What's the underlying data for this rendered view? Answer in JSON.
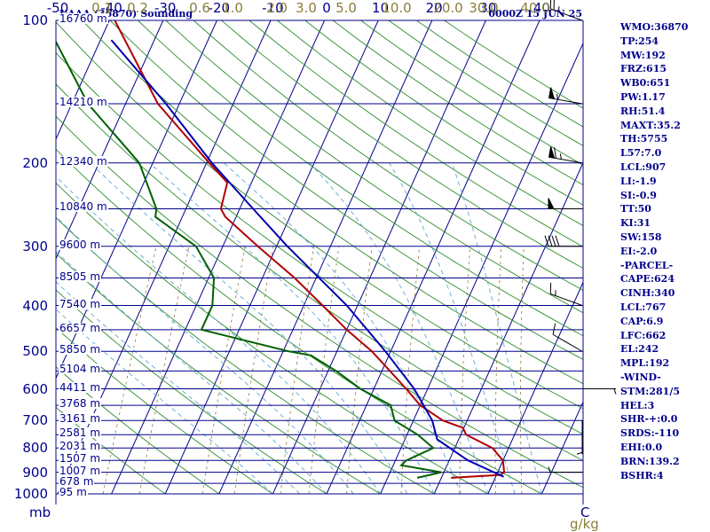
{
  "header": {
    "title_left": "UAAA (36870) Sounding",
    "title_right": "0000Z 15 JUN 25"
  },
  "indices": [
    "WMO:36870",
    "TP:254",
    "MW:192",
    "FRZ:615",
    "WB0:651",
    "PW:1.17",
    "RH:51.4",
    "MAXT:35.2",
    "TH:5755",
    "L57:7.0",
    "LCL:907",
    "LI:-1.9",
    "SI:-0.9",
    "TT:50",
    "KI:31",
    "SW:158",
    "EI:-2.0",
    "-PARCEL-",
    "CAPE:624",
    "CINH:340",
    "LCL:767",
    "CAP:6.9",
    "LFC:662",
    "EL:242",
    "MPL:192",
    "-WIND-",
    "STM:281/5",
    "HEL:3",
    "SHR-+:0.0",
    "SRDS:-110",
    "EHI:0.0",
    "BRN:139.2",
    "BSHR:4"
  ],
  "chart_data": {
    "type": "line",
    "subtype": "skew-T log-P sounding diagram",
    "pressure_axis": {
      "unit": "mb",
      "scale": "log",
      "range": [
        1000,
        100
      ],
      "tick_labels": [
        100,
        200,
        300,
        400,
        500,
        600,
        700,
        800,
        900,
        1000
      ]
    },
    "temperature_axis": {
      "unit": "C",
      "range": [
        -50,
        50
      ],
      "tick_labels": [
        -50,
        -40,
        -30,
        -20,
        -10,
        0,
        10,
        20,
        30,
        40
      ]
    },
    "mixing_ratio_axis": {
      "unit": "g/kg",
      "tick_labels": [
        "0.1",
        "0.2",
        "0.6",
        "1.0",
        "2.0",
        "3.0",
        "5.0",
        "10.0",
        "20.0",
        "30.0",
        "40.0"
      ],
      "values": [
        0.1,
        0.2,
        0.6,
        1.0,
        2.0,
        3.0,
        5.0,
        10.0,
        20.0,
        30.0,
        40.0
      ]
    },
    "height_levels": [
      {
        "pressure": 100,
        "label": "16760 m"
      },
      {
        "pressure": 150,
        "label": "14210 m"
      },
      {
        "pressure": 200,
        "label": "12340 m"
      },
      {
        "pressure": 250,
        "label": "10840 m"
      },
      {
        "pressure": 300,
        "label": "9600 m"
      },
      {
        "pressure": 350,
        "label": "8505 m"
      },
      {
        "pressure": 400,
        "label": "7540 m"
      },
      {
        "pressure": 450,
        "label": "6657 m"
      },
      {
        "pressure": 500,
        "label": "5850 m"
      },
      {
        "pressure": 550,
        "label": "5104 m"
      },
      {
        "pressure": 600,
        "label": "4411 m"
      },
      {
        "pressure": 650,
        "label": "3768 m"
      },
      {
        "pressure": 700,
        "label": "3161 m"
      },
      {
        "pressure": 750,
        "label": "2581 m"
      },
      {
        "pressure": 800,
        "label": "2031 m"
      },
      {
        "pressure": 850,
        "label": "1507 m"
      },
      {
        "pressure": 900,
        "label": "1007 m"
      },
      {
        "pressure": 950,
        "label": "678 m"
      },
      {
        "pressure": 1000,
        "label": "95 m"
      }
    ],
    "series": [
      {
        "kind": "temperature",
        "color": "#b00000",
        "points": [
          {
            "p": 925,
            "t": 21.8
          },
          {
            "p": 912,
            "t": 30.7
          },
          {
            "p": 900,
            "t": 31.2
          },
          {
            "p": 850,
            "t": 30.0
          },
          {
            "p": 800,
            "t": 27.0
          },
          {
            "p": 750,
            "t": 21.0
          },
          {
            "p": 725,
            "t": 19.8
          },
          {
            "p": 700,
            "t": 15.5
          },
          {
            "p": 650,
            "t": 10.0
          },
          {
            "p": 600,
            "t": 6.0
          },
          {
            "p": 550,
            "t": 1.5
          },
          {
            "p": 500,
            "t": -3.5
          },
          {
            "p": 450,
            "t": -10.0
          },
          {
            "p": 400,
            "t": -16.5
          },
          {
            "p": 350,
            "t": -24.0
          },
          {
            "p": 300,
            "t": -33.5
          },
          {
            "p": 260,
            "t": -42.0
          },
          {
            "p": 250,
            "t": -43.5
          },
          {
            "p": 220,
            "t": -44.5
          },
          {
            "p": 200,
            "t": -49.5
          },
          {
            "p": 150,
            "t": -64.0
          },
          {
            "p": 100,
            "t": -79.0
          }
        ]
      },
      {
        "kind": "dewpoint",
        "color": "#006000",
        "points": [
          {
            "p": 925,
            "t": 15.5
          },
          {
            "p": 900,
            "t": 19.5
          },
          {
            "p": 870,
            "t": 11.5
          },
          {
            "p": 850,
            "t": 12.0
          },
          {
            "p": 800,
            "t": 16.0
          },
          {
            "p": 750,
            "t": 12.0
          },
          {
            "p": 700,
            "t": 6.5
          },
          {
            "p": 650,
            "t": 4.5
          },
          {
            "p": 600,
            "t": -2.5
          },
          {
            "p": 550,
            "t": -8.5
          },
          {
            "p": 510,
            "t": -14.5
          },
          {
            "p": 500,
            "t": -19.0
          },
          {
            "p": 450,
            "t": -37.0
          },
          {
            "p": 400,
            "t": -37.0
          },
          {
            "p": 350,
            "t": -39.0
          },
          {
            "p": 300,
            "t": -45.0
          },
          {
            "p": 260,
            "t": -55.0
          },
          {
            "p": 250,
            "t": -55.5
          },
          {
            "p": 200,
            "t": -62.5
          },
          {
            "p": 150,
            "t": -77.0
          },
          {
            "p": 100,
            "t": -92.0
          }
        ]
      },
      {
        "kind": "parcel",
        "color": "#0000b0",
        "points": [
          {
            "p": 920,
            "t": 31.5
          },
          {
            "p": 850,
            "t": 23.5
          },
          {
            "p": 767,
            "t": 16.0
          },
          {
            "p": 700,
            "t": 13.5
          },
          {
            "p": 600,
            "t": 7.5
          },
          {
            "p": 500,
            "t": -1.0
          },
          {
            "p": 400,
            "t": -12.0
          },
          {
            "p": 300,
            "t": -28.0
          },
          {
            "p": 250,
            "t": -37.5
          },
          {
            "p": 200,
            "t": -49.0
          },
          {
            "p": 150,
            "t": -62.5
          },
          {
            "p": 110,
            "t": -78.0
          }
        ]
      }
    ],
    "wind_barbs": [
      {
        "p": 100,
        "dir": 290,
        "speed_kt": 25
      },
      {
        "p": 150,
        "dir": 280,
        "speed_kt": 55
      },
      {
        "p": 200,
        "dir": 280,
        "speed_kt": 65
      },
      {
        "p": 250,
        "dir": 270,
        "speed_kt": 50
      },
      {
        "p": 300,
        "dir": 270,
        "speed_kt": 40
      },
      {
        "p": 400,
        "dir": 290,
        "speed_kt": 15
      },
      {
        "p": 500,
        "dir": 300,
        "speed_kt": 10
      },
      {
        "p": 600,
        "dir": 90,
        "speed_kt": 5
      },
      {
        "p": 700,
        "dir": 180,
        "speed_kt": 5
      },
      {
        "p": 900,
        "dir": 270,
        "speed_kt": 5
      }
    ],
    "background_lines": {
      "isotherms_color": "#00008b",
      "dry_adiabats_color": "#2e8b2e",
      "moist_adiabats_color": "#5fa8d8",
      "mixing_ratio_color": "#8b7d3a"
    }
  }
}
